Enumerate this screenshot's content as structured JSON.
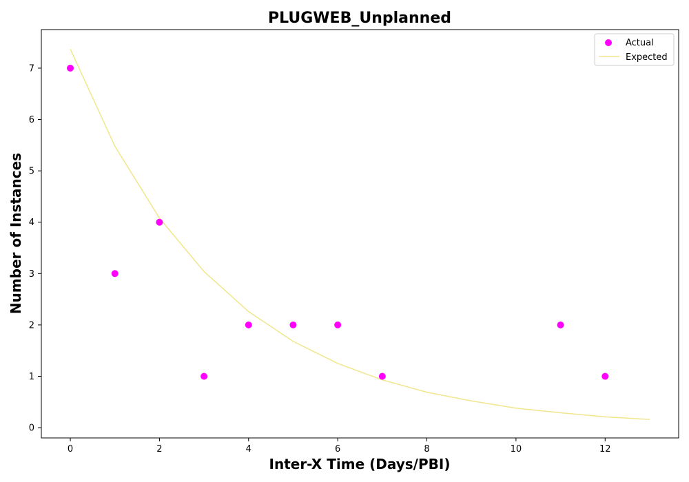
{
  "chart_data": {
    "type": "scatter",
    "title": "PLUGWEB_Unplanned",
    "xlabel": "Inter-X Time (Days/PBI)",
    "ylabel": "Number of Instances",
    "xlim": [
      -0.65,
      13.65
    ],
    "ylim": [
      -0.2,
      7.75
    ],
    "xticks": [
      0,
      2,
      4,
      6,
      8,
      10,
      12
    ],
    "yticks": [
      0,
      1,
      2,
      3,
      4,
      5,
      6,
      7
    ],
    "grid": false,
    "legend_position": "top-right",
    "series": [
      {
        "name": "Actual",
        "kind": "scatter",
        "color": "#ff00ff",
        "x": [
          0,
          1,
          2,
          3,
          4,
          5,
          6,
          7,
          11,
          12
        ],
        "y": [
          7,
          3,
          4,
          1,
          2,
          2,
          2,
          1,
          2,
          1
        ]
      },
      {
        "name": "Expected",
        "kind": "line",
        "color": "#f0e68c",
        "x": [
          0,
          1,
          2,
          3,
          4,
          5,
          6,
          7,
          8,
          9,
          10,
          11,
          12,
          13
        ],
        "y": [
          7.37,
          5.48,
          4.08,
          3.04,
          2.26,
          1.68,
          1.25,
          0.93,
          0.69,
          0.52,
          0.38,
          0.29,
          0.21,
          0.16
        ]
      }
    ]
  }
}
